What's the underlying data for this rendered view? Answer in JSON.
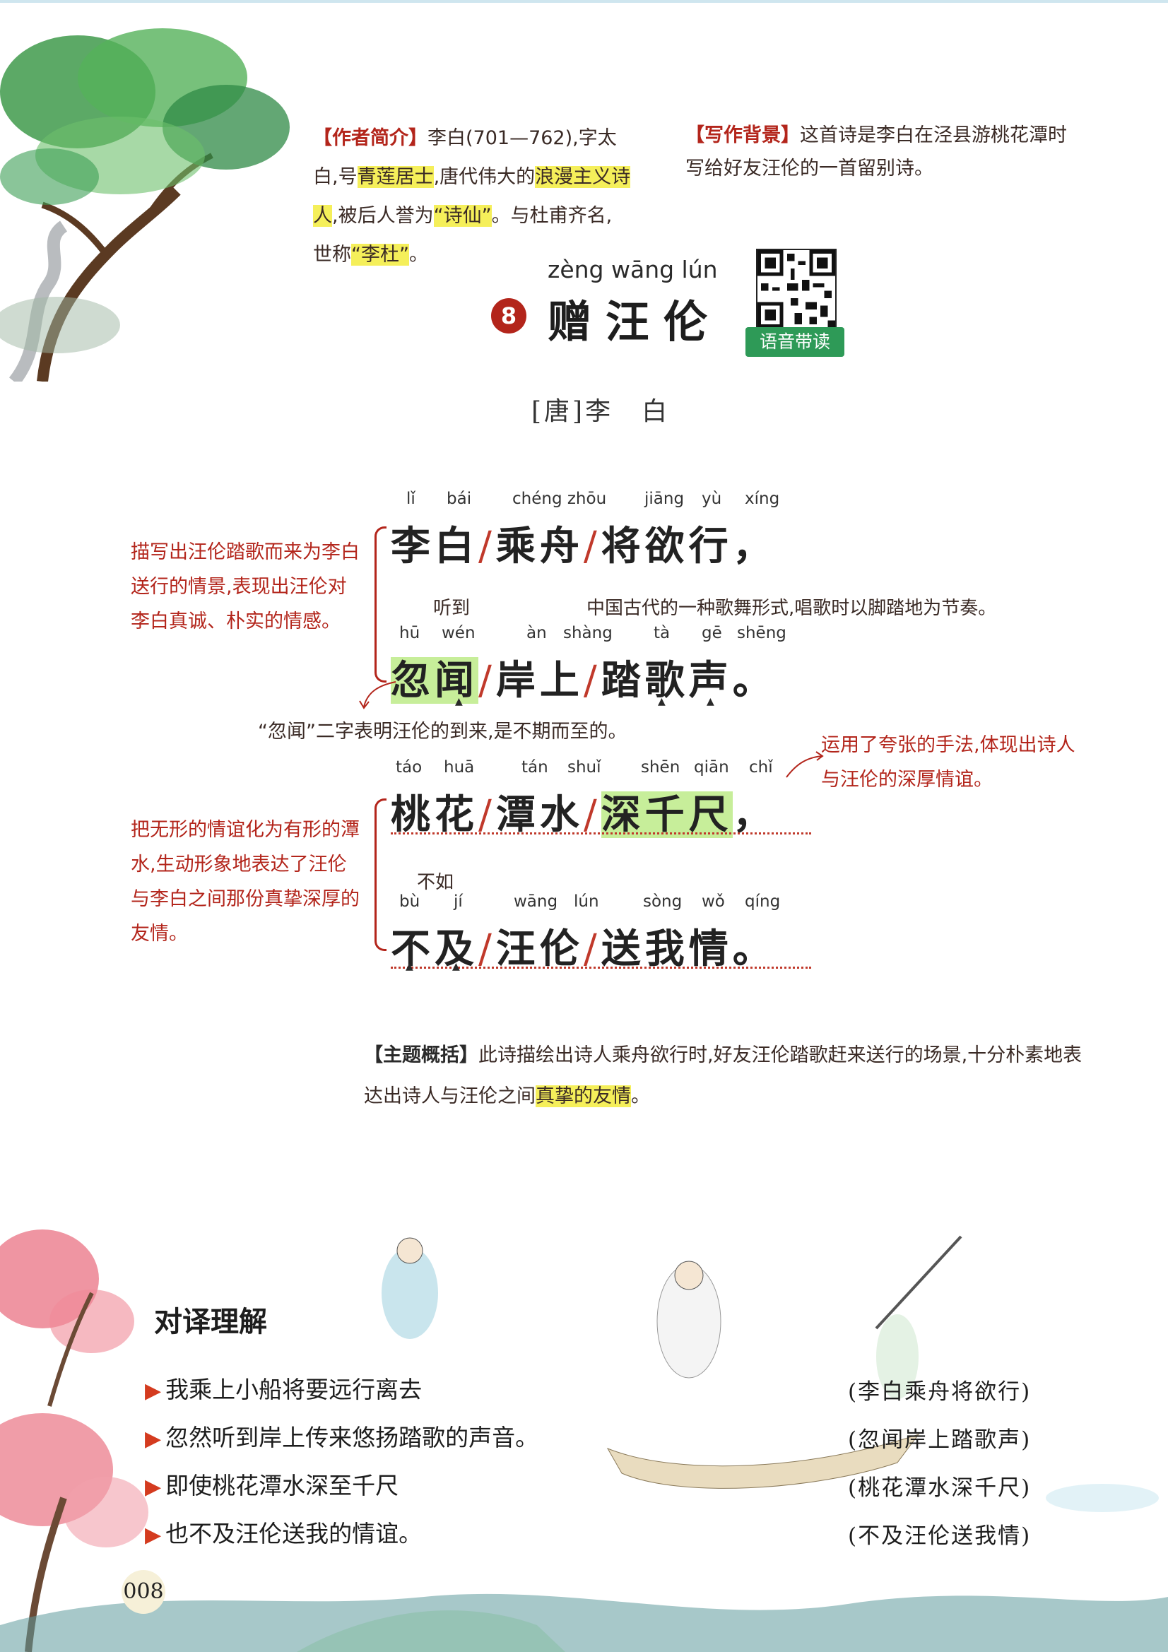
{
  "author_note": {
    "tag": "【作者简介】",
    "text1": "李白(701—762),字太白,号",
    "hl1": "青莲居士",
    "text2": ",唐代伟大的",
    "hl2": "浪漫主义诗人",
    "text3": ",被后人誉为",
    "hl3": "“诗仙”",
    "text4": "。与杜甫齐名,世称",
    "hl4": "“李杜”",
    "text5": "。"
  },
  "background_note": {
    "tag": "【写作背景】",
    "text": "这首诗是李白在泾县游桃花潭时写给好友汪伦的一首留别诗。"
  },
  "title": {
    "pinyin": "zèng wāng lún",
    "number": "8",
    "text": "赠汪伦",
    "qr_label": "语音带读"
  },
  "dynasty_author": "[唐]李　白",
  "lines": [
    {
      "pinyin": [
        "lǐ",
        "bái",
        "chéng zhōu",
        "jiāng",
        "yù",
        "xíng"
      ],
      "segments": [
        "李白",
        "乘舟",
        "将欲行"
      ],
      "punct": "，"
    },
    {
      "pinyin": [
        "hū",
        "wén",
        "àn",
        "shàng",
        "tà",
        "gē",
        "shēng"
      ],
      "segments": [
        "忽闻",
        "岸上",
        "踏歌声"
      ],
      "punct": "。"
    },
    {
      "pinyin": [
        "táo",
        "huā",
        "tán",
        "shuǐ",
        "shēn",
        "qiān",
        "chǐ"
      ],
      "segments": [
        "桃花",
        "潭水",
        "深千尺"
      ],
      "punct": "，"
    },
    {
      "pinyin": [
        "bù",
        "jí",
        "wāng",
        "lún",
        "sòng",
        "wǒ",
        "qíng"
      ],
      "segments": [
        "不及",
        "汪伦",
        "送我情"
      ],
      "punct": "。"
    }
  ],
  "glosses": {
    "wen": "听到",
    "tage": "中国古代的一种歌舞形式,唱歌时以脚踏地为节奏。",
    "buji": "不如"
  },
  "side_notes": {
    "left1": "描写出汪伦踏歌而来为李白送行的情景,表现出汪伦对李白真诚、朴实的情感。",
    "mid": "“忽闻”二字表明汪伦的到来,是不期而至的。",
    "right": "运用了夸张的手法,体现出诗人与汪伦的深厚情谊。",
    "left2": "把无形的情谊化为有形的潭水,生动形象地表达了汪伦与李白之间那份真挚深厚的友情。"
  },
  "summary": {
    "tag": "【主题概括】",
    "text": "此诗描绘出诗人乘舟欲行时,好友汪伦踏歌赶来送行的场景,十分朴素地表达出诗人与汪伦之间",
    "hl": "真挚的友情",
    "end": "。"
  },
  "translation": {
    "title": "对译理解",
    "rows": [
      {
        "left": "我乘上小船将要远行离去",
        "right": "(李白乘舟将欲行)"
      },
      {
        "left": "忽然听到岸上传来悠扬踏歌的声音。",
        "right": "(忽闻岸上踏歌声)"
      },
      {
        "left": "即使桃花潭水深至千尺",
        "right": "(桃花潭水深千尺)"
      },
      {
        "left": "也不及汪伦送我的情谊。",
        "right": "(不及汪伦送我情)"
      }
    ]
  },
  "page_number": "008",
  "colors": {
    "accent_red": "#b3251b",
    "highlight_yellow": "#f5ef5a",
    "highlight_green": "#c7ee9a",
    "qr_green": "#2e9a57"
  }
}
